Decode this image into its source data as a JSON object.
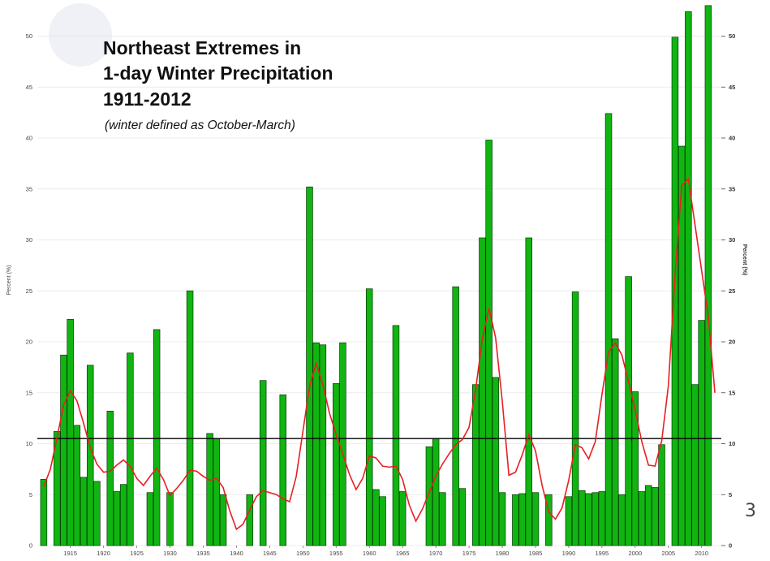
{
  "chart_data": {
    "type": "bar",
    "title_lines": [
      "Northeast Extremes in",
      "1-day Winter Precipitation",
      "1911-2012"
    ],
    "subtitle": "(winter defined as October-March)",
    "ylabel_left": "Percent (%)",
    "ylabel_right": "Percent (%)",
    "xlabel": "",
    "x_start": 1911,
    "x_end": 2012,
    "ylim": [
      0,
      53
    ],
    "yticks": [
      0,
      5,
      10,
      15,
      20,
      25,
      30,
      35,
      40,
      45,
      50
    ],
    "xticks": [
      1915,
      1920,
      1925,
      1930,
      1935,
      1940,
      1945,
      1950,
      1955,
      1960,
      1965,
      1970,
      1975,
      1980,
      1985,
      1990,
      1995,
      2000,
      2005,
      2010
    ],
    "reference_line": 10.5,
    "series": [
      {
        "values": [
          6.5,
          0,
          11.2,
          18.7,
          22.2,
          11.8,
          6.7,
          17.7,
          6.3,
          0,
          13.2,
          5.3,
          6.0,
          18.9,
          0,
          0,
          5.2,
          21.2,
          0,
          5.2,
          0,
          0,
          25.0,
          0,
          0,
          11.0,
          10.5,
          5.0,
          0,
          0,
          0,
          5.0,
          0,
          16.2,
          0,
          0,
          14.8,
          0,
          0,
          0,
          35.2,
          19.9,
          19.7,
          0,
          15.9,
          19.9,
          0,
          0,
          0,
          25.2,
          5.5,
          4.8,
          0,
          21.6,
          5.3,
          0,
          0,
          0,
          9.7,
          10.5,
          5.2,
          0,
          25.4,
          5.6,
          0,
          15.8,
          30.2,
          39.8,
          16.5,
          5.2,
          0,
          5.0,
          5.1,
          30.2,
          5.2,
          0,
          5.0,
          0,
          0,
          4.8,
          24.9,
          5.4,
          5.1,
          5.2,
          5.3,
          42.4,
          20.3,
          5.0,
          26.4,
          15.1,
          5.3,
          5.9,
          5.7,
          9.9,
          0,
          49.9,
          39.2,
          52.4,
          15.8,
          22.1,
          53.0,
          0
        ],
        "color": "#11b511",
        "border": "#053805"
      }
    ],
    "trend": {
      "color": "#e82020",
      "values": [
        5.8,
        7.5,
        10.6,
        13.8,
        15.2,
        14.2,
        12.0,
        9.6,
        8.0,
        7.2,
        7.3,
        7.9,
        8.4,
        7.8,
        6.6,
        5.9,
        6.8,
        7.6,
        6.5,
        4.9,
        5.6,
        6.4,
        7.4,
        7.3,
        6.8,
        6.4,
        6.6,
        5.7,
        3.4,
        1.6,
        2.1,
        3.5,
        4.8,
        5.4,
        5.2,
        5.0,
        4.6,
        4.3,
        6.8,
        11.2,
        15.6,
        17.9,
        15.8,
        13.0,
        10.9,
        9.0,
        7.0,
        5.5,
        6.6,
        8.8,
        8.6,
        7.8,
        7.7,
        7.8,
        6.5,
        4.0,
        2.4,
        3.6,
        5.2,
        6.8,
        8.0,
        9.0,
        9.9,
        10.4,
        11.6,
        15.3,
        20.3,
        23.3,
        20.4,
        14.2,
        6.9,
        7.2,
        8.9,
        10.9,
        9.3,
        5.9,
        3.3,
        2.6,
        3.7,
        6.4,
        9.9,
        9.6,
        8.5,
        10.2,
        14.8,
        19.0,
        19.9,
        18.7,
        16.1,
        13.3,
        10.2,
        7.9,
        7.8,
        10.3,
        15.7,
        26.5,
        35.3,
        36.0,
        31.5,
        27.0,
        22.5,
        15.0
      ]
    }
  },
  "slide_number": "3"
}
